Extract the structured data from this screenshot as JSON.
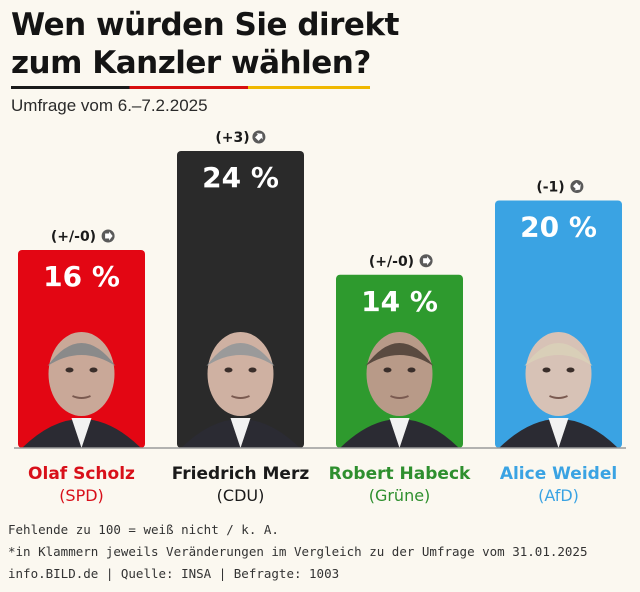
{
  "title_line1": "Wen würden Sie direkt",
  "title_line2": "zum Kanzler wählen?",
  "subtitle": "Umfrage vom 6.–7.2.2025",
  "chart_data": {
    "type": "bar",
    "title": "Wen würden Sie direkt zum Kanzler wählen?",
    "subtitle": "Umfrage vom 6.–7.2.2025",
    "categories": [
      "Olaf Scholz",
      "Friedrich Merz",
      "Robert Habeck",
      "Alice Weidel"
    ],
    "parties": [
      "(SPD)",
      "(CDU)",
      "(Grüne)",
      "(AfD)"
    ],
    "values": [
      16,
      24,
      14,
      20
    ],
    "value_labels": [
      "16 %",
      "24 %",
      "14 %",
      "20 %"
    ],
    "changes": [
      "(+/-0)",
      "(+3)",
      "(+/-0)",
      "(-1)"
    ],
    "change_directions": [
      "flat",
      "up",
      "flat",
      "down"
    ],
    "colors": [
      "#e30613",
      "#2a2a2a",
      "#2e9a2e",
      "#3aa3e3"
    ],
    "label_colors": [
      "#d8101a",
      "#1a1a1a",
      "#2e8f2e",
      "#3aa3e3"
    ],
    "ylim": [
      0,
      24
    ],
    "grid": false
  },
  "footer": {
    "line1": "Fehlende zu 100 = weiß nicht / k. A.",
    "line2": "*in Klammern jeweils Veränderungen im Vergleich zu der Umfrage vom 31.01.2025",
    "line3": "info.BILD.de | Quelle: INSA | Befragte: 1003"
  }
}
